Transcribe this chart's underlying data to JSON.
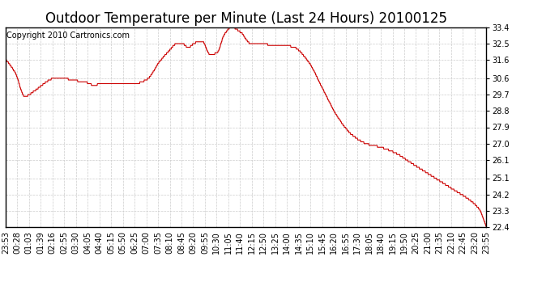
{
  "title": "Outdoor Temperature per Minute (Last 24 Hours) 20100125",
  "copyright_text": "Copyright 2010 Cartronics.com",
  "line_color": "#cc0000",
  "background_color": "#ffffff",
  "grid_color": "#cccccc",
  "y_ticks": [
    22.4,
    23.3,
    24.2,
    25.1,
    26.1,
    27.0,
    27.9,
    28.8,
    29.7,
    30.6,
    31.6,
    32.5,
    33.4
  ],
  "ylim": [
    22.4,
    33.4
  ],
  "x_tick_labels": [
    "23:53",
    "00:28",
    "01:03",
    "01:39",
    "02:16",
    "02:55",
    "03:30",
    "04:05",
    "04:40",
    "05:15",
    "05:50",
    "06:25",
    "07:00",
    "07:35",
    "08:10",
    "08:45",
    "09:20",
    "09:55",
    "10:30",
    "11:05",
    "11:40",
    "12:15",
    "12:50",
    "13:25",
    "14:00",
    "14:35",
    "15:10",
    "15:45",
    "16:20",
    "16:55",
    "17:30",
    "18:05",
    "18:40",
    "19:15",
    "19:50",
    "20:25",
    "21:00",
    "21:35",
    "22:10",
    "22:45",
    "23:20",
    "23:55"
  ],
  "title_fontsize": 12,
  "tick_fontsize": 7,
  "copyright_fontsize": 7,
  "keypoints_x": [
    0.0,
    0.02,
    0.04,
    0.06,
    0.08,
    0.095,
    0.11,
    0.13,
    0.15,
    0.17,
    0.185,
    0.2,
    0.215,
    0.24,
    0.27,
    0.295,
    0.32,
    0.34,
    0.355,
    0.365,
    0.38,
    0.395,
    0.41,
    0.425,
    0.44,
    0.455,
    0.47,
    0.49,
    0.51,
    0.53,
    0.545,
    0.56,
    0.58,
    0.6,
    0.63,
    0.66,
    0.69,
    0.72,
    0.75,
    0.78,
    0.81,
    0.84,
    0.87,
    0.9,
    0.93,
    0.96,
    0.985,
    1.0
  ],
  "keypoints_y": [
    31.6,
    30.9,
    29.6,
    29.9,
    30.3,
    30.55,
    30.6,
    30.55,
    30.45,
    30.35,
    30.2,
    30.35,
    30.3,
    30.25,
    30.3,
    30.55,
    31.5,
    32.1,
    32.5,
    32.55,
    32.3,
    32.55,
    32.6,
    31.9,
    32.0,
    33.0,
    33.4,
    33.1,
    32.5,
    32.5,
    32.45,
    32.4,
    32.4,
    32.3,
    31.5,
    30.0,
    28.5,
    27.5,
    27.0,
    26.8,
    26.5,
    26.0,
    25.5,
    25.0,
    24.5,
    24.0,
    23.4,
    22.4
  ]
}
